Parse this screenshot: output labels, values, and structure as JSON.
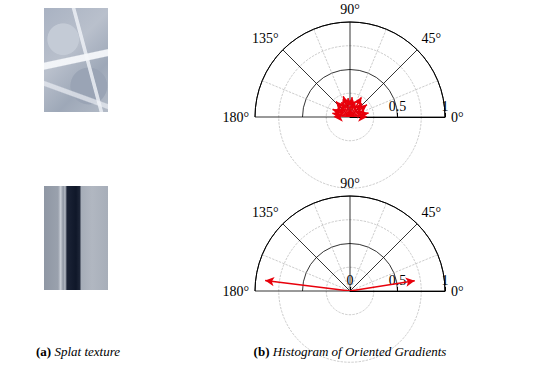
{
  "captions": [
    {
      "label": "(a)",
      "text": "Splat texture"
    },
    {
      "label": "(b)",
      "text": "Histogram of Oriented Gradients"
    }
  ],
  "chart_data": [
    {
      "type": "polar",
      "angles": [
        0,
        12,
        24,
        36,
        48,
        60,
        72,
        84,
        96,
        108,
        120,
        132,
        144,
        156,
        168,
        180
      ],
      "values": [
        0.18,
        0.2,
        0.16,
        0.22,
        0.19,
        0.24,
        0.17,
        0.21,
        0.2,
        0.23,
        0.18,
        0.22,
        0.16,
        0.2,
        0.19,
        0.17
      ],
      "color": "#e8000b",
      "marker": "arrow",
      "rlim": [
        0,
        1
      ],
      "rticks": [
        0,
        0.5,
        1
      ],
      "thetalim": [
        0,
        180
      ],
      "thetaticks": [
        {
          "value": 0,
          "label": "0°"
        },
        {
          "value": 45,
          "label": "45°"
        },
        {
          "value": 90,
          "label": "90°"
        },
        {
          "value": 135,
          "label": "135°"
        },
        {
          "value": 180,
          "label": "180°"
        }
      ],
      "grid": true
    },
    {
      "type": "polar",
      "angles": [
        173,
        9
      ],
      "values": [
        0.9,
        0.69
      ],
      "color": "#e8000b",
      "marker": "arrow",
      "rlim": [
        0,
        1
      ],
      "rticks": [
        0,
        0.5,
        1
      ],
      "thetalim": [
        0,
        180
      ],
      "thetaticks": [
        {
          "value": 0,
          "label": "0°"
        },
        {
          "value": 45,
          "label": "45°"
        },
        {
          "value": 90,
          "label": "90°"
        },
        {
          "value": 135,
          "label": "135°"
        },
        {
          "value": 180,
          "label": "180°"
        }
      ],
      "grid": true
    }
  ]
}
